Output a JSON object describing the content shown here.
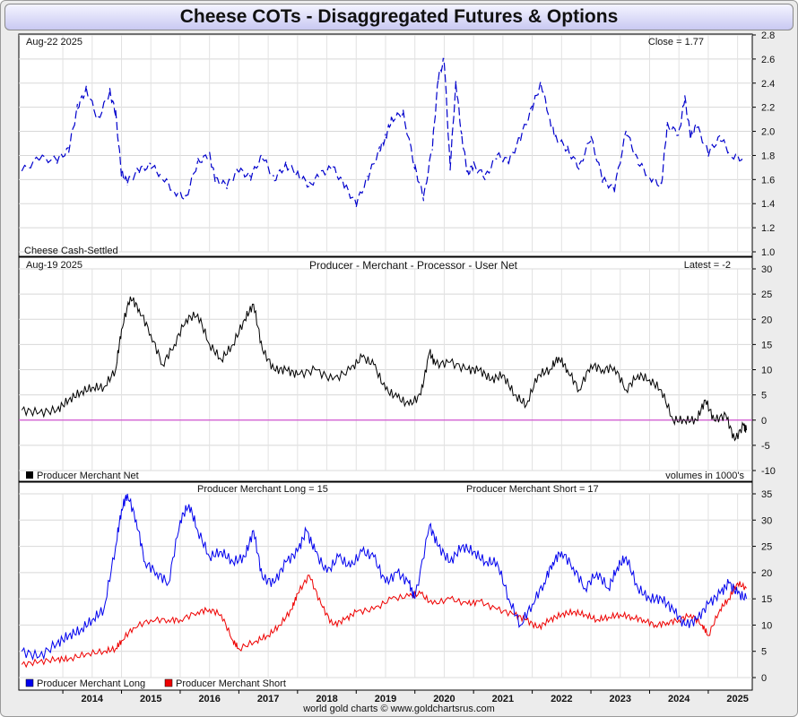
{
  "title": "Cheese COTs - Disaggregated Futures & Options",
  "footer": "world gold charts © www.goldchartsrus.com",
  "x_labels": [
    "2014",
    "2015",
    "2016",
    "2017",
    "2018",
    "2019",
    "2020",
    "2021",
    "2022",
    "2023",
    "2024",
    "2025"
  ],
  "colors": {
    "price": "#0000cc",
    "net": "#000000",
    "zero_line": "#cc33cc",
    "long": "#0000ee",
    "short": "#ee0000"
  },
  "chart_data": [
    {
      "type": "line",
      "date_label": "Aug-22  2025",
      "stat_label": "Close = 1.77",
      "legend_label": "Cheese Cash-Settled",
      "ylim": [
        1.0,
        2.8
      ],
      "yticks": [
        "1.0",
        "1.2",
        "1.4",
        "1.6",
        "1.8",
        "2.0",
        "2.2",
        "2.4",
        "2.6",
        "2.8"
      ],
      "grid": true,
      "x": [
        2013.3,
        2013.6,
        2013.9,
        2014.1,
        2014.25,
        2014.4,
        2014.6,
        2014.8,
        2014.9,
        2015.0,
        2015.1,
        2015.3,
        2015.5,
        2015.7,
        2015.9,
        2016.1,
        2016.3,
        2016.5,
        2016.6,
        2016.8,
        2017.0,
        2017.2,
        2017.4,
        2017.6,
        2017.8,
        2018.0,
        2018.2,
        2018.4,
        2018.6,
        2018.8,
        2019.0,
        2019.2,
        2019.4,
        2019.5,
        2019.6,
        2019.8,
        2020.0,
        2020.15,
        2020.3,
        2020.4,
        2020.5,
        2020.6,
        2020.7,
        2020.8,
        2020.9,
        2021.0,
        2021.2,
        2021.4,
        2021.6,
        2021.8,
        2022.0,
        2022.15,
        2022.3,
        2022.4,
        2022.6,
        2022.8,
        2023.0,
        2023.2,
        2023.4,
        2023.6,
        2023.8,
        2024.0,
        2024.2,
        2024.3,
        2024.5,
        2024.6,
        2024.7,
        2024.8,
        2025.0,
        2025.2,
        2025.4,
        2025.6
      ],
      "y": [
        1.67,
        1.78,
        1.76,
        1.85,
        2.2,
        2.35,
        2.1,
        2.33,
        2.15,
        1.65,
        1.58,
        1.68,
        1.72,
        1.62,
        1.5,
        1.45,
        1.75,
        1.8,
        1.6,
        1.55,
        1.68,
        1.62,
        1.8,
        1.6,
        1.72,
        1.65,
        1.55,
        1.65,
        1.7,
        1.55,
        1.4,
        1.62,
        1.85,
        1.95,
        2.1,
        2.15,
        1.7,
        1.45,
        1.88,
        2.45,
        2.6,
        1.7,
        2.4,
        1.95,
        1.65,
        1.72,
        1.62,
        1.8,
        1.75,
        1.95,
        2.2,
        2.4,
        2.1,
        1.95,
        1.85,
        1.7,
        1.95,
        1.6,
        1.52,
        2.0,
        1.75,
        1.62,
        1.55,
        2.05,
        1.98,
        2.28,
        1.95,
        2.05,
        1.82,
        1.95,
        1.8,
        1.77
      ]
    },
    {
      "type": "line",
      "title": "Producer - Merchant - Processor - User Net",
      "date_label": "Aug-19  2025",
      "stat_label": "Latest = -2",
      "legend_label": "Producer Merchant Net",
      "note": "volumes in 1000's",
      "ylim": [
        -10,
        30
      ],
      "yticks": [
        "-10",
        "-5",
        "0",
        "5",
        "10",
        "15",
        "20",
        "25",
        "30"
      ],
      "grid": true,
      "x": [
        2013.3,
        2013.6,
        2013.9,
        2014.1,
        2014.3,
        2014.5,
        2014.7,
        2014.9,
        2015.0,
        2015.15,
        2015.3,
        2015.5,
        2015.7,
        2015.9,
        2016.1,
        2016.3,
        2016.5,
        2016.7,
        2016.9,
        2017.1,
        2017.25,
        2017.4,
        2017.6,
        2017.8,
        2018.0,
        2018.3,
        2018.6,
        2018.9,
        2019.1,
        2019.3,
        2019.5,
        2019.7,
        2019.9,
        2020.1,
        2020.25,
        2020.35,
        2020.6,
        2020.9,
        2021.1,
        2021.3,
        2021.5,
        2021.7,
        2021.9,
        2022.1,
        2022.3,
        2022.45,
        2022.6,
        2022.8,
        2023.0,
        2023.2,
        2023.4,
        2023.6,
        2023.8,
        2024.0,
        2024.2,
        2024.4,
        2024.6,
        2024.8,
        2024.95,
        2025.1,
        2025.3,
        2025.45,
        2025.6,
        2025.65
      ],
      "y": [
        2,
        1.5,
        2,
        4,
        5.5,
        6.5,
        6.5,
        10,
        18,
        24.5,
        22,
        17,
        11,
        15,
        20,
        21,
        15,
        12,
        15,
        20,
        23,
        14,
        10,
        10,
        9,
        10,
        8,
        10,
        12.5,
        11,
        6,
        4.5,
        3,
        5,
        13.5,
        11,
        11.5,
        10,
        10,
        8,
        9,
        5,
        3,
        9,
        10,
        12.5,
        10,
        6,
        11,
        10,
        10.5,
        6,
        9,
        8,
        6,
        0,
        0,
        0,
        4,
        0,
        1,
        -4,
        -1,
        -2
      ]
    },
    {
      "type": "line",
      "long_label": "Producer Merchant Long = 15",
      "short_label": "Producer Merchant Short = 17",
      "ylim": [
        0,
        35
      ],
      "yticks": [
        "0",
        "5",
        "10",
        "15",
        "20",
        "25",
        "30",
        "35"
      ],
      "grid": true,
      "series": [
        {
          "name": "Producer Merchant Long",
          "x": [
            2013.3,
            2013.6,
            2013.9,
            2014.1,
            2014.3,
            2014.5,
            2014.7,
            2014.9,
            2015.0,
            2015.1,
            2015.25,
            2015.4,
            2015.6,
            2015.8,
            2016.0,
            2016.15,
            2016.3,
            2016.5,
            2016.7,
            2016.9,
            2017.1,
            2017.25,
            2017.4,
            2017.6,
            2017.8,
            2018.0,
            2018.15,
            2018.3,
            2018.5,
            2018.7,
            2018.9,
            2019.1,
            2019.3,
            2019.5,
            2019.7,
            2019.9,
            2020.0,
            2020.25,
            2020.4,
            2020.6,
            2020.8,
            2021.0,
            2021.2,
            2021.4,
            2021.6,
            2021.8,
            2022.0,
            2022.2,
            2022.35,
            2022.5,
            2022.7,
            2022.9,
            2023.1,
            2023.3,
            2023.45,
            2023.6,
            2023.8,
            2024.0,
            2024.2,
            2024.4,
            2024.6,
            2024.8,
            2025.0,
            2025.2,
            2025.35,
            2025.5,
            2025.65
          ],
          "y": [
            5,
            4,
            6.5,
            8,
            9,
            11,
            13,
            25,
            32,
            35,
            30,
            22,
            20,
            18,
            30,
            33,
            28,
            23,
            24,
            22,
            23,
            28,
            19,
            18,
            22,
            24,
            28,
            24,
            20,
            23,
            21,
            24,
            23,
            18,
            20,
            18,
            15,
            29,
            25,
            22,
            25,
            24,
            22,
            22,
            15,
            10,
            14,
            18,
            22,
            24,
            21,
            17,
            20,
            17,
            21,
            23,
            17,
            15,
            15,
            13,
            10,
            11,
            14,
            16,
            18,
            16,
            15
          ]
        },
        {
          "name": "Producer Merchant Short",
          "x": [
            2013.3,
            2013.6,
            2013.9,
            2014.1,
            2014.4,
            2014.7,
            2014.9,
            2015.0,
            2015.2,
            2015.5,
            2015.8,
            2016.0,
            2016.3,
            2016.5,
            2016.7,
            2016.9,
            2017.0,
            2017.3,
            2017.5,
            2017.7,
            2017.9,
            2018.0,
            2018.2,
            2018.4,
            2018.6,
            2018.8,
            2019.0,
            2019.3,
            2019.6,
            2019.9,
            2020.1,
            2020.3,
            2020.6,
            2020.9,
            2021.1,
            2021.4,
            2021.7,
            2021.9,
            2022.1,
            2022.3,
            2022.5,
            2022.7,
            2022.9,
            2023.1,
            2023.3,
            2023.5,
            2023.7,
            2023.9,
            2024.1,
            2024.3,
            2024.5,
            2024.7,
            2024.9,
            2025.0,
            2025.2,
            2025.35,
            2025.5,
            2025.65
          ],
          "y": [
            2.5,
            3,
            3.5,
            3.5,
            4.5,
            5,
            5.5,
            7,
            9.5,
            11,
            11,
            11,
            12.5,
            13,
            12,
            7,
            5.5,
            7,
            8,
            10,
            13,
            16,
            19.5,
            14,
            10,
            11,
            12.5,
            13,
            15,
            15.5,
            16,
            14,
            15,
            14,
            14.5,
            13,
            12,
            11,
            9.5,
            11,
            12,
            12.5,
            12,
            11,
            11.5,
            12,
            11.5,
            11,
            10,
            10.5,
            11,
            12,
            10,
            8,
            13,
            15,
            18,
            17
          ]
        }
      ]
    }
  ]
}
